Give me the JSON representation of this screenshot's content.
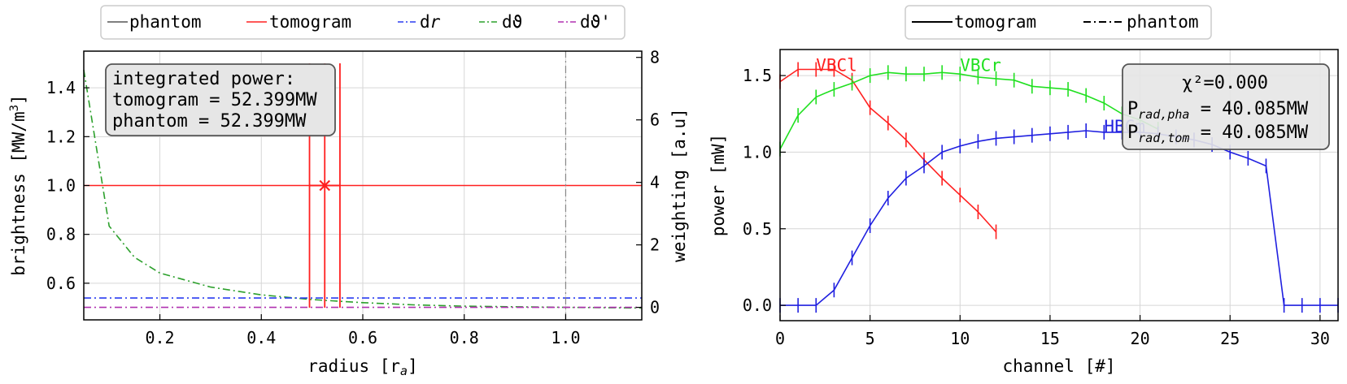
{
  "chart_data": [
    {
      "type": "line",
      "xlabel": "radius [rₐ]",
      "ylabel": "brightness [MW/m³]",
      "y2label": "weighting [a.u]",
      "xlim": [
        0.05,
        1.15
      ],
      "ylim": [
        0.45,
        1.55
      ],
      "y2lim": [
        -0.4,
        8.2
      ],
      "xticks": [
        "0.2",
        "0.4",
        "0.6",
        "0.8",
        "1.0"
      ],
      "yticks": [
        "0.6",
        "0.8",
        "1.0",
        "1.2",
        "1.4"
      ],
      "y2ticks": [
        "0",
        "2",
        "4",
        "6",
        "8"
      ],
      "grid": true,
      "legend": {
        "placement": "top, outside",
        "entries": [
          {
            "label": "phantom",
            "color": "#555555",
            "style": "solid"
          },
          {
            "label": "tomogram",
            "color": "#ff2020",
            "style": "solid"
          },
          {
            "label": "d",
            "label_italic": "r",
            "color": "#2a3cf0",
            "style": "dashdot"
          },
          {
            "label": "dϑ",
            "color": "#2ca02c",
            "style": "dashdot"
          },
          {
            "label": "dϑ'",
            "color": "#b030b0",
            "style": "dashdot"
          }
        ]
      },
      "annotation": [
        "integrated power:",
        "tomogram = 52.399MW",
        "phantom = 52.399MW"
      ],
      "series": [
        {
          "name": "tomogram",
          "axis": "left",
          "color": "#ff2020",
          "points": [
            [
              0.05,
              1.0
            ],
            [
              1.15,
              1.0
            ]
          ]
        },
        {
          "name": "tomogram",
          "axis": "left",
          "color": "#ff2020",
          "marker": "x",
          "points": [
            [
              0.525,
              1.0
            ]
          ],
          "xerr": [
            0.03
          ]
        },
        {
          "name": "dϑ",
          "axis": "right",
          "color": "#2ca02c",
          "style": "dashdot",
          "points": [
            [
              0.05,
              7.6
            ],
            [
              0.1,
              2.6
            ],
            [
              0.15,
              1.6
            ],
            [
              0.2,
              1.1
            ],
            [
              0.3,
              0.65
            ],
            [
              0.4,
              0.4
            ],
            [
              0.5,
              0.25
            ],
            [
              0.6,
              0.15
            ],
            [
              0.7,
              0.08
            ],
            [
              0.8,
              0.04
            ],
            [
              1.0,
              0.0
            ],
            [
              1.15,
              -0.02
            ]
          ]
        },
        {
          "name": "dr",
          "axis": "right",
          "color": "#2a3cf0",
          "style": "dashdot",
          "points": [
            [
              0.05,
              0.3
            ],
            [
              1.15,
              0.3
            ]
          ]
        },
        {
          "name": "dϑ'",
          "axis": "right",
          "color": "#b030b0",
          "style": "dashdot",
          "points": [
            [
              0.05,
              0.0
            ],
            [
              1.15,
              0.0
            ]
          ]
        }
      ],
      "vlines": [
        {
          "x": 0.495,
          "color": "#ff2020",
          "from": 0.5,
          "to": 1.5
        },
        {
          "x": 0.525,
          "color": "#ff2020",
          "from": 0.5,
          "to": 1.5
        },
        {
          "x": 0.555,
          "color": "#ff2020",
          "from": 0.5,
          "to": 1.5
        },
        {
          "x": 1.0,
          "color": "#888888",
          "style": "dashdot",
          "from": 0.45,
          "to": 1.55
        }
      ]
    },
    {
      "type": "line",
      "xlabel": "channel [#]",
      "ylabel": "power [mW]",
      "xlim": [
        0,
        31
      ],
      "ylim": [
        -0.1,
        1.67
      ],
      "xticks": [
        "0",
        "5",
        "10",
        "15",
        "20",
        "25",
        "30"
      ],
      "yticks": [
        "0.0",
        "0.5",
        "1.0",
        "1.5"
      ],
      "grid": true,
      "legend": {
        "placement": "top, outside",
        "entries": [
          {
            "label": "tomogram",
            "color": "#000000",
            "style": "solid"
          },
          {
            "label": "phantom",
            "color": "#000000",
            "style": "dashdot"
          }
        ]
      },
      "annotation": {
        "chi": "χ²=0.000",
        "pha_value": " = 40.085MW",
        "tom_value": " = 40.085MW",
        "pha_sub": "rad,pha",
        "tom_sub": "rad,tom"
      },
      "series": [
        {
          "name": "VBCl",
          "color": "#ff2020",
          "x": [
            0,
            1,
            2,
            3,
            4,
            5,
            6,
            7,
            8,
            9,
            10,
            11,
            12
          ],
          "y": [
            1.46,
            1.54,
            1.54,
            1.54,
            1.47,
            1.29,
            1.19,
            1.08,
            0.95,
            0.83,
            0.72,
            0.61,
            0.48
          ],
          "label_at": [
            2.0,
            1.53
          ]
        },
        {
          "name": "VBCr",
          "color": "#20e020",
          "x": [
            0,
            1,
            2,
            3,
            4,
            5,
            6,
            7,
            8,
            9,
            10,
            11,
            12,
            13,
            14,
            15,
            16,
            17,
            18,
            19,
            20,
            21
          ],
          "y": [
            1.02,
            1.24,
            1.36,
            1.41,
            1.45,
            1.5,
            1.52,
            1.51,
            1.51,
            1.52,
            1.51,
            1.49,
            1.48,
            1.47,
            1.43,
            1.42,
            1.41,
            1.37,
            1.32,
            1.25,
            1.21,
            1.15
          ],
          "label_at": [
            10.0,
            1.53
          ]
        },
        {
          "name": "HBCm",
          "color": "#2020e0",
          "x": [
            0,
            1,
            2,
            3,
            4,
            5,
            6,
            7,
            8,
            9,
            10,
            11,
            12,
            13,
            14,
            15,
            16,
            17,
            18,
            19,
            20,
            21,
            22,
            23,
            24,
            25,
            26,
            27,
            28,
            29,
            30,
            31
          ],
          "y": [
            0,
            0,
            0,
            0.1,
            0.31,
            0.52,
            0.7,
            0.83,
            0.91,
            1.0,
            1.04,
            1.07,
            1.09,
            1.1,
            1.11,
            1.12,
            1.13,
            1.14,
            1.13,
            1.13,
            1.13,
            1.12,
            1.1,
            1.08,
            1.05,
            1.0,
            0.96,
            0.91,
            0,
            0,
            0,
            0
          ],
          "label_at": [
            18.0,
            1.13
          ]
        }
      ]
    }
  ]
}
